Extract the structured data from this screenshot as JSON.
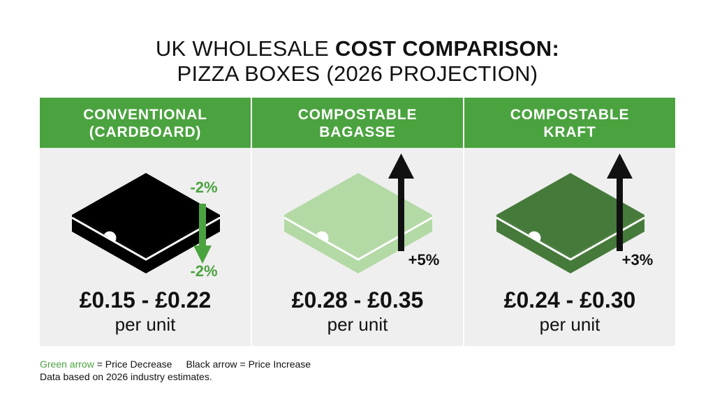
{
  "title": {
    "line1_regular": "UK WHOLESALE ",
    "line1_bold": "COST COMPARISON:",
    "line2": "PIZZA BOXES (2026 PROJECTION)"
  },
  "colors": {
    "header_green": "#4ba33f",
    "panel_bg": "#efefef",
    "arrow_green": "#4ba33f",
    "arrow_black": "#111111"
  },
  "chart_data": {
    "type": "table",
    "title": "UK WHOLESALE COST COMPARISON: PIZZA BOXES (2026 PROJECTION)",
    "columns": [
      {
        "header_line1": "CONVENTIONAL",
        "header_line2": "(CARDBOARD)",
        "box_color": "#000000",
        "price_range": "£0.15 - £0.22",
        "price_min": 0.15,
        "price_max": 0.22,
        "unit": "per unit",
        "change_label_top": "-2%",
        "change_label_bottom": "-2%",
        "change_pct": -2,
        "arrow": "down",
        "arrow_color": "green"
      },
      {
        "header_line1": "COMPOSTABLE",
        "header_line2": "BAGASSE",
        "box_color": "#b3d9a5",
        "price_range": "£0.28 - £0.35",
        "price_min": 0.28,
        "price_max": 0.35,
        "unit": "per unit",
        "change_label": "+5%",
        "change_pct": 5,
        "arrow": "up",
        "arrow_color": "black"
      },
      {
        "header_line1": "COMPOSTABLE",
        "header_line2": "KRAFT",
        "box_color": "#467a3a",
        "price_range": "£0.24 - £0.30",
        "price_min": 0.24,
        "price_max": 0.3,
        "unit": "per unit",
        "change_label": "+3%",
        "change_pct": 3,
        "arrow": "up",
        "arrow_color": "black"
      }
    ]
  },
  "legend": {
    "green_word": "Green arrow",
    "green_rest": " = Price Decrease",
    "black_text": "Black arrow = Price Increase",
    "note": "Data based on 2026 industry estimates."
  }
}
